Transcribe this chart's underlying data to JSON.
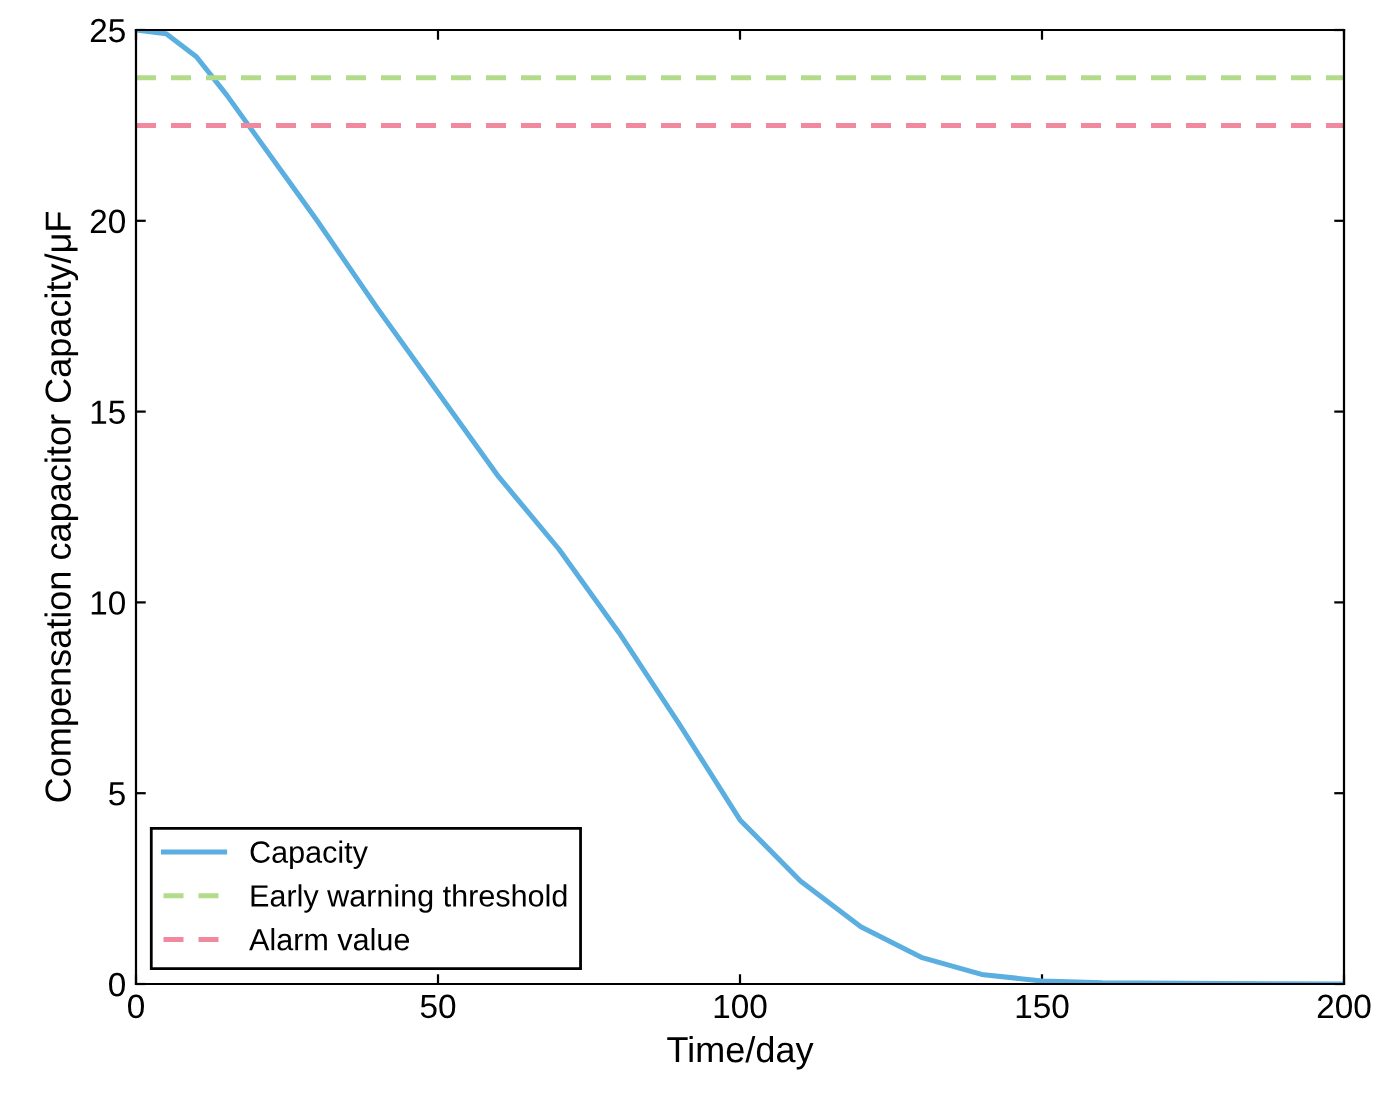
{
  "chart_data": {
    "type": "line",
    "xlabel": "Time/day",
    "ylabel": "Compensation capacitor Capacity/μF",
    "xlim": [
      0,
      200
    ],
    "ylim": [
      0,
      25
    ],
    "xticks": [
      0,
      50,
      100,
      150,
      200
    ],
    "yticks": [
      0,
      5,
      10,
      15,
      20,
      25
    ],
    "series": [
      {
        "name": "Capacity",
        "color": "#5aaee0",
        "line_style": "solid",
        "x": [
          0,
          5,
          10,
          15,
          20,
          25,
          30,
          40,
          50,
          60,
          70,
          80,
          90,
          100,
          110,
          120,
          130,
          140,
          150,
          160,
          180,
          200
        ],
        "values": [
          25,
          24.9,
          24.3,
          23.3,
          22.2,
          21.1,
          20.0,
          17.7,
          15.5,
          13.3,
          11.4,
          9.2,
          6.8,
          4.3,
          2.7,
          1.5,
          0.7,
          0.25,
          0.08,
          0.03,
          0.01,
          0
        ]
      },
      {
        "name": "Early warning threshold",
        "color": "#b3dc8a",
        "line_style": "dashed",
        "x": [
          0,
          200
        ],
        "values": [
          23.75,
          23.75
        ]
      },
      {
        "name": "Alarm value",
        "color": "#f0899e",
        "line_style": "dashed",
        "x": [
          0,
          200
        ],
        "values": [
          22.5,
          22.5
        ]
      }
    ],
    "grid": false,
    "legend": "bottom left",
    "marker": "none"
  }
}
